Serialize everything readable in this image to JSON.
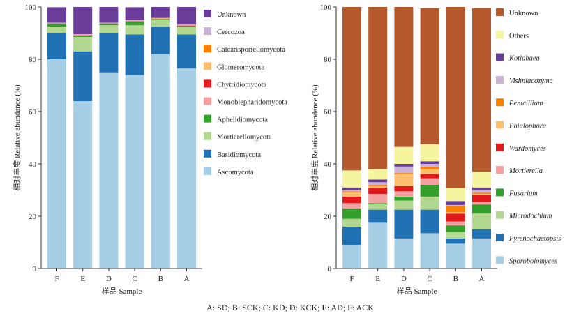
{
  "figure": {
    "caption": "A: SD; B: SCK; C: KD; D: KCK; E: AD; F: ACK"
  },
  "chart_data": [
    {
      "type": "bar",
      "stacked": true,
      "xlabel": "样品 Sample",
      "ylabel": "相对丰度 Relative abundance (%)",
      "ylim": [
        0,
        100
      ],
      "yticks": [
        0,
        20,
        40,
        60,
        80,
        100
      ],
      "categories": [
        "F",
        "E",
        "D",
        "C",
        "B",
        "A"
      ],
      "legend_position": "right",
      "series": [
        {
          "name": "Ascomycota",
          "color": "#a6cfe5",
          "italic": false,
          "values": [
            80,
            64,
            75,
            74,
            82,
            76.5
          ]
        },
        {
          "name": "Basidiomycota",
          "color": "#2171b5",
          "italic": false,
          "values": [
            10,
            19,
            15,
            15.5,
            10.5,
            13
          ]
        },
        {
          "name": "Mortierellomycota",
          "color": "#b2d88f",
          "italic": false,
          "values": [
            2.5,
            5.5,
            3,
            3.5,
            2.5,
            3
          ]
        },
        {
          "name": "Aphelidiomycota",
          "color": "#33a02c",
          "italic": false,
          "values": [
            1,
            0.5,
            0.5,
            1.5,
            0.3,
            0.3
          ]
        },
        {
          "name": "Monoblepharidomycota",
          "color": "#f4a0a0",
          "italic": false,
          "values": [
            0.1,
            0.2,
            0.1,
            0.1,
            0.1,
            0.1
          ]
        },
        {
          "name": "Chytridiomycota",
          "color": "#e31a1c",
          "italic": false,
          "values": [
            0.1,
            0.1,
            0.1,
            0.1,
            0.1,
            0.1
          ]
        },
        {
          "name": "Glomeromycota",
          "color": "#fdbf6f",
          "italic": false,
          "values": [
            0.1,
            0.1,
            0.1,
            0.1,
            0.1,
            0.1
          ]
        },
        {
          "name": "Calcarisporiellomycota",
          "color": "#ff7f00",
          "italic": false,
          "values": [
            0.1,
            0.1,
            0.1,
            0.1,
            0.1,
            0.1
          ]
        },
        {
          "name": "Cercozoa",
          "color": "#cab2d6",
          "italic": false,
          "values": [
            0.1,
            0.1,
            0.1,
            0.1,
            0.1,
            0.1
          ]
        },
        {
          "name": "Unknown",
          "color": "#6a3d9a",
          "italic": false,
          "values": [
            5.9,
            10.4,
            6.0,
            4.9,
            4.2,
            6.7
          ]
        }
      ]
    },
    {
      "type": "bar",
      "stacked": true,
      "xlabel": "样品 Sample",
      "ylabel": "相对丰度 Relative abundance (%)",
      "ylim": [
        0,
        100
      ],
      "yticks": [
        0,
        20,
        40,
        60,
        80,
        100
      ],
      "categories": [
        "F",
        "E",
        "D",
        "C",
        "B",
        "A"
      ],
      "legend_position": "right",
      "series": [
        {
          "name": "Sporobolomyces",
          "color": "#a6cfe5",
          "italic": true,
          "values": [
            9,
            17.5,
            11.5,
            13.5,
            9.5,
            11.5
          ]
        },
        {
          "name": "Pyrenochaetopsis",
          "color": "#2171b5",
          "italic": true,
          "values": [
            7,
            5,
            11,
            9,
            2,
            3.5
          ]
        },
        {
          "name": "Microdochium",
          "color": "#b2d88f",
          "italic": true,
          "values": [
            3,
            2,
            3.5,
            5,
            2.5,
            6
          ]
        },
        {
          "name": "Fusarium",
          "color": "#33a02c",
          "italic": true,
          "values": [
            4,
            0.5,
            1.5,
            4.5,
            2.5,
            3.5
          ]
        },
        {
          "name": "Mortierella",
          "color": "#f4a0a0",
          "italic": true,
          "values": [
            2,
            3.5,
            2,
            2.5,
            1.5,
            1
          ]
        },
        {
          "name": "Wardomyces",
          "color": "#e31a1c",
          "italic": true,
          "values": [
            2.5,
            2.5,
            2,
            1.5,
            3,
            2.5
          ]
        },
        {
          "name": "Phialophora",
          "color": "#fdbf6f",
          "italic": true,
          "values": [
            1.5,
            0.5,
            4.5,
            2,
            0.5,
            0.5
          ]
        },
        {
          "name": "Penicillium",
          "color": "#ff7f00",
          "italic": true,
          "values": [
            0.5,
            0.5,
            0.5,
            1,
            2.5,
            0.5
          ]
        },
        {
          "name": "Vishniacozyma",
          "color": "#cab2d6",
          "italic": true,
          "values": [
            0.5,
            1,
            2.5,
            1,
            0.3,
            1
          ]
        },
        {
          "name": "Kotlabaea",
          "color": "#6a3d9a",
          "italic": true,
          "values": [
            1,
            1,
            1,
            1,
            1.5,
            1
          ]
        },
        {
          "name": "Others",
          "color": "#f5f5a0",
          "italic": false,
          "values": [
            6.5,
            4,
            6.5,
            6.5,
            5,
            6
          ]
        },
        {
          "name": "Unknown",
          "color": "#b5582b",
          "italic": false,
          "values": [
            62.5,
            62,
            53.5,
            52,
            69.2,
            62.5
          ]
        }
      ]
    }
  ]
}
